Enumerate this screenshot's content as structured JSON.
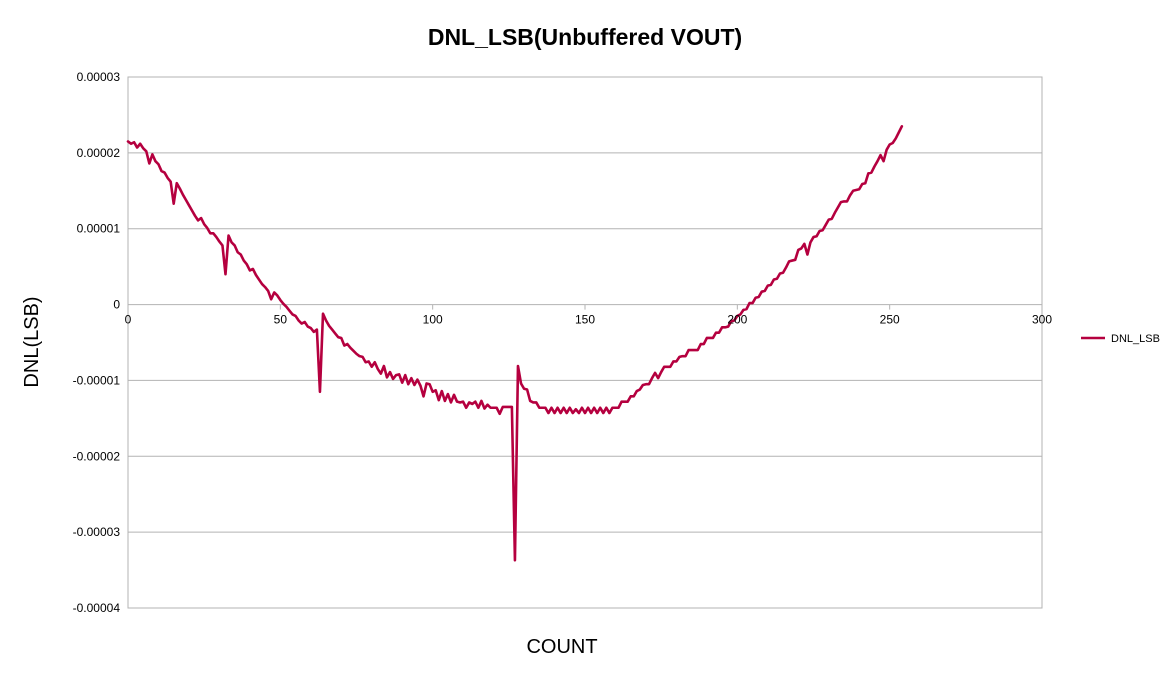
{
  "chart_data": {
    "type": "line",
    "title": "DNL_LSB(Unbuffered VOUT)",
    "xlabel": "COUNT",
    "ylabel": "DNL(LSB)",
    "xlim": [
      0,
      300
    ],
    "ylim": [
      -4e-05,
      3e-05
    ],
    "x_ticks": [
      0,
      50,
      100,
      150,
      200,
      250,
      300
    ],
    "y_ticks": [
      3e-05,
      2e-05,
      1e-05,
      0,
      -1e-05,
      -2e-05,
      -3e-05,
      -4e-05
    ],
    "x_tick_labels": [
      "0",
      "50",
      "100",
      "150",
      "200",
      "250",
      "300"
    ],
    "y_tick_labels": [
      "0.00003",
      "0.00002",
      "0.00001",
      "0",
      "-0.00001",
      "-0.00002",
      "-0.00003",
      "-0.00004"
    ],
    "grid": "horizontal",
    "legend_position": "right",
    "series": [
      {
        "name": "DNL_LSB",
        "color": "#b5003f",
        "points": [
          [
            0,
            2.15e-05
          ],
          [
            1,
            2.12e-05
          ],
          [
            2,
            2.14e-05
          ],
          [
            3,
            2.07e-05
          ],
          [
            4,
            2.12e-05
          ],
          [
            5,
            2.06e-05
          ],
          [
            6,
            2.02e-05
          ],
          [
            7,
            1.86e-05
          ],
          [
            8,
            1.98e-05
          ],
          [
            9,
            1.89e-05
          ],
          [
            10,
            1.85e-05
          ],
          [
            11,
            1.76e-05
          ],
          [
            12,
            1.74e-05
          ],
          [
            13,
            1.67e-05
          ],
          [
            14,
            1.62e-05
          ],
          [
            15,
            1.33e-05
          ],
          [
            16,
            1.6e-05
          ],
          [
            17,
            1.53e-05
          ],
          [
            18,
            1.45e-05
          ],
          [
            19,
            1.38e-05
          ],
          [
            20,
            1.31e-05
          ],
          [
            21,
            1.24e-05
          ],
          [
            22,
            1.17e-05
          ],
          [
            23,
            1.11e-05
          ],
          [
            24,
            1.14e-05
          ],
          [
            25,
            1.06e-05
          ],
          [
            26,
            1.01e-05
          ],
          [
            27,
            9.4e-06
          ],
          [
            28,
            9.4e-06
          ],
          [
            29,
            8.9e-06
          ],
          [
            30,
            8.3e-06
          ],
          [
            31,
            7.8e-06
          ],
          [
            32,
            4e-06
          ],
          [
            33,
            9.1e-06
          ],
          [
            34,
            8.2e-06
          ],
          [
            35,
            7.8e-06
          ],
          [
            36,
            6.9e-06
          ],
          [
            37,
            6.6e-06
          ],
          [
            38,
            5.8e-06
          ],
          [
            39,
            5.3e-06
          ],
          [
            40,
            4.5e-06
          ],
          [
            41,
            4.7e-06
          ],
          [
            42,
            3.9e-06
          ],
          [
            43,
            3.3e-06
          ],
          [
            44,
            2.7e-06
          ],
          [
            45,
            2.3e-06
          ],
          [
            46,
            1.8e-06
          ],
          [
            47,
            7e-07
          ],
          [
            48,
            1.6e-06
          ],
          [
            49,
            1.2e-06
          ],
          [
            50,
            6e-07
          ],
          [
            51,
            1e-07
          ],
          [
            52,
            -3e-07
          ],
          [
            53,
            -8e-07
          ],
          [
            54,
            -1.3e-06
          ],
          [
            55,
            -1.5e-06
          ],
          [
            56,
            -2.1e-06
          ],
          [
            57,
            -2.5e-06
          ],
          [
            58,
            -2.3e-06
          ],
          [
            59,
            -2.9e-06
          ],
          [
            60,
            -3.1e-06
          ],
          [
            61,
            -3.6e-06
          ],
          [
            62,
            -3.3e-06
          ],
          [
            63,
            -1.15e-05
          ],
          [
            64,
            -1.2e-06
          ],
          [
            65,
            -2.1e-06
          ],
          [
            66,
            -2.8e-06
          ],
          [
            67,
            -3.3e-06
          ],
          [
            68,
            -3.8e-06
          ],
          [
            69,
            -4.3e-06
          ],
          [
            70,
            -4.4e-06
          ],
          [
            71,
            -5.4e-06
          ],
          [
            72,
            -5.2e-06
          ],
          [
            73,
            -5.7e-06
          ],
          [
            74,
            -6.1e-06
          ],
          [
            75,
            -6.5e-06
          ],
          [
            76,
            -6.8e-06
          ],
          [
            77,
            -6.9e-06
          ],
          [
            78,
            -7.6e-06
          ],
          [
            79,
            -7.5e-06
          ],
          [
            80,
            -8.2e-06
          ],
          [
            81,
            -7.6e-06
          ],
          [
            82,
            -8.5e-06
          ],
          [
            83,
            -9.1e-06
          ],
          [
            84,
            -8.1e-06
          ],
          [
            85,
            -9.6e-06
          ],
          [
            86,
            -8.9e-06
          ],
          [
            87,
            -9.8e-06
          ],
          [
            88,
            -9.3e-06
          ],
          [
            89,
            -9.2e-06
          ],
          [
            90,
            -1.03e-05
          ],
          [
            91,
            -9.3e-06
          ],
          [
            92,
            -1.05e-05
          ],
          [
            93,
            -9.7e-06
          ],
          [
            94,
            -1.06e-05
          ],
          [
            95,
            -9.9e-06
          ],
          [
            96,
            -1.07e-05
          ],
          [
            97,
            -1.21e-05
          ],
          [
            98,
            -1.04e-05
          ],
          [
            99,
            -1.05e-05
          ],
          [
            100,
            -1.15e-05
          ],
          [
            101,
            -1.13e-05
          ],
          [
            102,
            -1.26e-05
          ],
          [
            103,
            -1.14e-05
          ],
          [
            104,
            -1.27e-05
          ],
          [
            105,
            -1.18e-05
          ],
          [
            106,
            -1.29e-05
          ],
          [
            107,
            -1.19e-05
          ],
          [
            108,
            -1.28e-05
          ],
          [
            109,
            -1.29e-05
          ],
          [
            110,
            -1.28e-05
          ],
          [
            111,
            -1.36e-05
          ],
          [
            112,
            -1.29e-05
          ],
          [
            113,
            -1.31e-05
          ],
          [
            114,
            -1.28e-05
          ],
          [
            115,
            -1.36e-05
          ],
          [
            116,
            -1.27e-05
          ],
          [
            117,
            -1.37e-05
          ],
          [
            118,
            -1.32e-05
          ],
          [
            119,
            -1.36e-05
          ],
          [
            120,
            -1.36e-05
          ],
          [
            121,
            -1.36e-05
          ],
          [
            122,
            -1.44e-05
          ],
          [
            123,
            -1.35e-05
          ],
          [
            124,
            -1.35e-05
          ],
          [
            125,
            -1.35e-05
          ],
          [
            126,
            -1.35e-05
          ],
          [
            127,
            -3.37e-05
          ],
          [
            128,
            -8.1e-06
          ],
          [
            129,
            -1.04e-05
          ],
          [
            130,
            -1.11e-05
          ],
          [
            131,
            -1.12e-05
          ],
          [
            132,
            -1.27e-05
          ],
          [
            133,
            -1.29e-05
          ],
          [
            134,
            -1.29e-05
          ],
          [
            135,
            -1.36e-05
          ],
          [
            136,
            -1.36e-05
          ],
          [
            137,
            -1.36e-05
          ],
          [
            138,
            -1.43e-05
          ],
          [
            139,
            -1.36e-05
          ],
          [
            140,
            -1.43e-05
          ],
          [
            141,
            -1.36e-05
          ],
          [
            142,
            -1.43e-05
          ],
          [
            143,
            -1.36e-05
          ],
          [
            144,
            -1.43e-05
          ],
          [
            145,
            -1.36e-05
          ],
          [
            146,
            -1.43e-05
          ],
          [
            147,
            -1.38e-05
          ],
          [
            148,
            -1.43e-05
          ],
          [
            149,
            -1.36e-05
          ],
          [
            150,
            -1.43e-05
          ],
          [
            151,
            -1.36e-05
          ],
          [
            152,
            -1.43e-05
          ],
          [
            153,
            -1.36e-05
          ],
          [
            154,
            -1.43e-05
          ],
          [
            155,
            -1.36e-05
          ],
          [
            156,
            -1.43e-05
          ],
          [
            157,
            -1.36e-05
          ],
          [
            158,
            -1.43e-05
          ],
          [
            159,
            -1.36e-05
          ],
          [
            160,
            -1.36e-05
          ],
          [
            161,
            -1.36e-05
          ],
          [
            162,
            -1.28e-05
          ],
          [
            163,
            -1.28e-05
          ],
          [
            164,
            -1.28e-05
          ],
          [
            165,
            -1.21e-05
          ],
          [
            166,
            -1.21e-05
          ],
          [
            167,
            -1.14e-05
          ],
          [
            168,
            -1.12e-05
          ],
          [
            169,
            -1.06e-05
          ],
          [
            170,
            -1.05e-05
          ],
          [
            171,
            -1.05e-05
          ],
          [
            172,
            -9.7e-06
          ],
          [
            173,
            -9e-06
          ],
          [
            174,
            -9.7e-06
          ],
          [
            175,
            -8.9e-06
          ],
          [
            176,
            -8.2e-06
          ],
          [
            177,
            -8.2e-06
          ],
          [
            178,
            -8.2e-06
          ],
          [
            179,
            -7.5e-06
          ],
          [
            180,
            -7.5e-06
          ],
          [
            181,
            -6.9e-06
          ],
          [
            182,
            -6.8e-06
          ],
          [
            183,
            -6.8e-06
          ],
          [
            184,
            -6e-06
          ],
          [
            185,
            -6e-06
          ],
          [
            186,
            -6e-06
          ],
          [
            187,
            -6e-06
          ],
          [
            188,
            -5.2e-06
          ],
          [
            189,
            -5.2e-06
          ],
          [
            190,
            -4.4e-06
          ],
          [
            191,
            -4.4e-06
          ],
          [
            192,
            -4.4e-06
          ],
          [
            193,
            -3.7e-06
          ],
          [
            194,
            -3.7e-06
          ],
          [
            195,
            -3e-06
          ],
          [
            196,
            -3e-06
          ],
          [
            197,
            -2.9e-06
          ],
          [
            198,
            -2.2e-06
          ],
          [
            199,
            -2.1e-06
          ],
          [
            200,
            -1.5e-06
          ],
          [
            201,
            -1.3e-06
          ],
          [
            202,
            -7e-07
          ],
          [
            203,
            -6e-07
          ],
          [
            204,
            2e-07
          ],
          [
            205,
            2e-07
          ],
          [
            206,
            9e-07
          ],
          [
            207,
            1e-06
          ],
          [
            208,
            1.7e-06
          ],
          [
            209,
            1.8e-06
          ],
          [
            210,
            2.5e-06
          ],
          [
            211,
            2.6e-06
          ],
          [
            212,
            3.3e-06
          ],
          [
            213,
            3.4e-06
          ],
          [
            214,
            4.1e-06
          ],
          [
            215,
            4.2e-06
          ],
          [
            216,
            4.9e-06
          ],
          [
            217,
            5.7e-06
          ],
          [
            218,
            5.8e-06
          ],
          [
            219,
            5.9e-06
          ],
          [
            220,
            7.2e-06
          ],
          [
            221,
            7.4e-06
          ],
          [
            222,
            8e-06
          ],
          [
            223,
            6.6e-06
          ],
          [
            224,
            8.2e-06
          ],
          [
            225,
            8.9e-06
          ],
          [
            226,
            9e-06
          ],
          [
            227,
            9.7e-06
          ],
          [
            228,
            9.8e-06
          ],
          [
            229,
            1.05e-05
          ],
          [
            230,
            1.12e-05
          ],
          [
            231,
            1.13e-05
          ],
          [
            232,
            1.21e-05
          ],
          [
            233,
            1.28e-05
          ],
          [
            234,
            1.35e-05
          ],
          [
            235,
            1.36e-05
          ],
          [
            236,
            1.36e-05
          ],
          [
            237,
            1.44e-05
          ],
          [
            238,
            1.5e-05
          ],
          [
            239,
            1.51e-05
          ],
          [
            240,
            1.52e-05
          ],
          [
            241,
            1.59e-05
          ],
          [
            242,
            1.6e-05
          ],
          [
            243,
            1.73e-05
          ],
          [
            244,
            1.74e-05
          ],
          [
            245,
            1.82e-05
          ],
          [
            246,
            1.89e-05
          ],
          [
            247,
            1.97e-05
          ],
          [
            248,
            1.89e-05
          ],
          [
            249,
            2.04e-05
          ],
          [
            250,
            2.11e-05
          ],
          [
            251,
            2.13e-05
          ],
          [
            252,
            2.19e-05
          ],
          [
            253,
            2.27e-05
          ],
          [
            254,
            2.35e-05
          ]
        ]
      }
    ]
  }
}
